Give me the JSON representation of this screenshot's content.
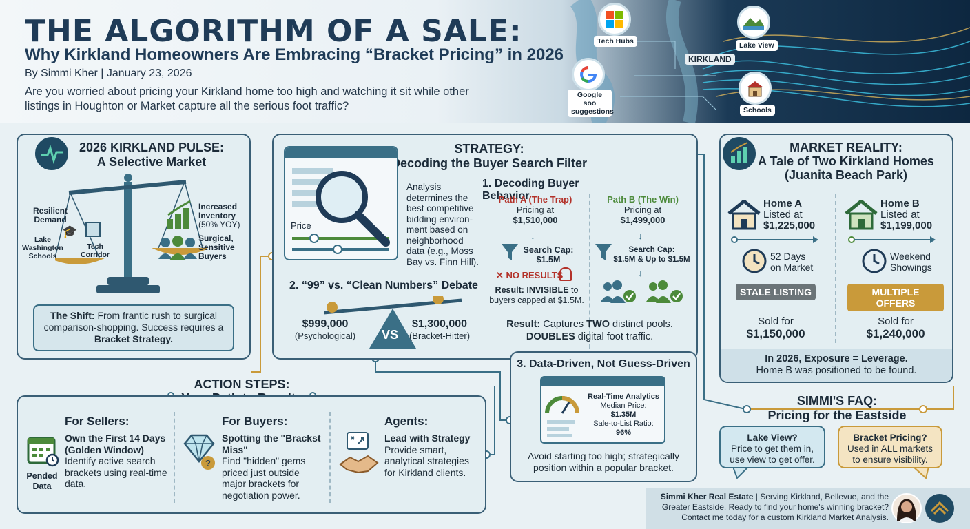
{
  "header": {
    "title": "THE ALGORITHM OF A SALE:",
    "subtitle": "Why Kirkland Homeowners Are Embracing “Bracket Pricing” in 2026",
    "byline": "By Simmi Kher | January 23, 2026",
    "intro": "Are you worried about pricing your Kirkland home too high and watching it sit while other listings in Houghton or Market capture all the serious foot traffic?",
    "map": {
      "tech_hubs": "Tech Hubs",
      "lake_view": "Lake View",
      "kirkland": "KIRKLAND",
      "google": "Google soo suggestions",
      "schools": "Schools"
    }
  },
  "pulse": {
    "title_line1": "2026 KIRKLAND PULSE:",
    "title_line2": "A Selective Market",
    "resilient": "Resilient Demand",
    "schools": "Lake Washington Schools",
    "tech": "Tech Corridor",
    "inventory": "Increased Inventory",
    "inventory_pct": "(50% YOY)",
    "buyers": "Surgical, Sensitive Buyers",
    "shift_label": "The Shift:",
    "shift_text": "From frantic rush to surgical comparison-shopping. Success requires a",
    "shift_bold": "Bracket Strategy."
  },
  "strategy": {
    "title_line1": "STRATEGY:",
    "title_line2": "Decoding the Buyer Search Filter",
    "price_label": "Price",
    "analysis": "Analysis determines the best competitive bidding environ-ment based on neighborhood data (e.g., Moss Bay vs. Finn Hill).",
    "s1_title": "1. Decoding Buyer Behavior",
    "path_a": "Path A (The Trap)",
    "path_a_pricing": "Pricing at",
    "path_a_price": "$1,510,000",
    "path_a_cap_label": "Search Cap:",
    "path_a_cap": "$1.5M",
    "no_results": "NO RESULTS",
    "path_a_result_label": "Result:",
    "path_a_result_bold": "INVISIBLE",
    "path_a_result_rest": "to buyers capped at $1.5M.",
    "path_b": "Path B (The Win)",
    "path_b_pricing": "Pricing at",
    "path_b_price": "$1,499,000",
    "path_b_cap_label": "Search Cap:",
    "path_b_cap": "$1.5M & Up to $1.5M",
    "path_b_result_label": "Result:",
    "path_b_result_1": "Captures",
    "path_b_result_2": "TWO",
    "path_b_result_3": "distinct pools.",
    "path_b_result_4": "DOUBLES",
    "path_b_result_5": "digital foot traffic.",
    "s2_title": "2. “99” vs. “Clean Numbers” Debate",
    "left_price": "$999,000",
    "left_note": "(Psychological)",
    "vs": "VS",
    "right_price": "$1,300,000",
    "right_note": "(Bracket-Hitter)",
    "s3_title": "3. Data-Driven, Not Guess-Driven",
    "analytics_title": "Real-Time Analytics",
    "median_label": "Median Price:",
    "median_value": "$1.35M",
    "ratio_label": "Sale-to-List Ratio:",
    "ratio_value": "96%",
    "s3_note": "Avoid starting too high; strategically position within a popular bracket."
  },
  "market": {
    "title_line1": "MARKET REALITY:",
    "title_line2": "A Tale of Two Kirkland Homes",
    "title_line3": "(Juanita Beach Park)",
    "home_a": "Home A",
    "home_a_listed": "Listed at",
    "home_a_price": "$1,225,000",
    "home_a_days": "52 Days",
    "home_a_days2": "on Market",
    "home_a_badge": "STALE LISTING",
    "home_a_sold": "Sold for",
    "home_a_sold_price": "$1,150,000",
    "home_b": "Home B",
    "home_b_listed": "Listed at",
    "home_b_price": "$1,199,000",
    "home_b_days": "Weekend",
    "home_b_days2": "Showings",
    "home_b_badge": "MULTIPLE OFFERS",
    "home_b_sold": "Sold for",
    "home_b_sold_price": "$1,240,000",
    "footer_bold": "In 2026, Exposure = Leverage.",
    "footer_text": "Home B was positioned to be found."
  },
  "actions": {
    "title_line1": "ACTION STEPS:",
    "title_line2": "Your Path to Results",
    "sellers_title": "For Sellers:",
    "sellers_sub": "Own the First 14 Days (Golden Window)",
    "sellers_text": "Identify active search brackets using real-time data.",
    "pended": "Pended Data",
    "buyers_title": "For Buyers:",
    "buyers_sub": "Spotting the \"Brackst Miss\"",
    "buyers_text": "Find \"hidden\" gems priced just outside major brackets for negotiation power.",
    "agents_title": "Agents:",
    "agents_sub": "Lead with Strategy",
    "agents_text": "Provide smart, analytical strategies for Kirkland clients."
  },
  "faq": {
    "title_line1": "SIMMI'S FAQ:",
    "title_line2": "Pricing for the Eastside",
    "q1": "Lake View?",
    "a1": "Price to get them in, use view to get offer.",
    "q2": "Bracket Pricing?",
    "a2": "Used in ALL markets to ensure visibility."
  },
  "footer": {
    "brand": "Simmi Kher Real Estate",
    "text": "| Serving Kirkland, Bellevue, and the Greater Eastside. Ready to find your home's winning bracket? Contact me today for a custom Kirkland Market Analysis."
  },
  "colors": {
    "navy": "#1f3b57",
    "teal": "#3a6f86",
    "green": "#4c8a3a",
    "red": "#b3322a",
    "gold": "#c99a3a",
    "panel": "#e3eef2"
  }
}
